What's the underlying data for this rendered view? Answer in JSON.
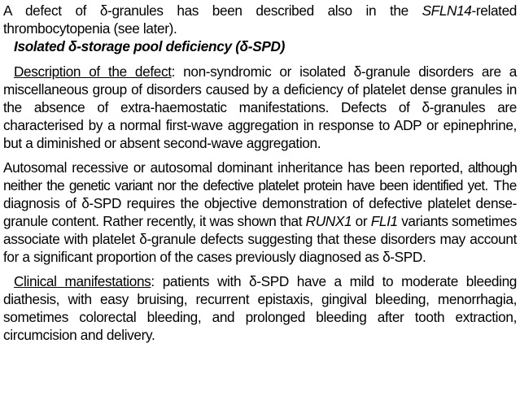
{
  "intro": {
    "t1": "A defect of δ-granules has been described also in the ",
    "gene": "SFLN14",
    "t2": "-related thrombocytopenia (see later)."
  },
  "section": {
    "heading": "Isolated δ-storage pool deficiency (δ-SPD)"
  },
  "description": {
    "label": "Description of the defect",
    "text": ": non-syndromic or isolated δ-granule disorders are a miscellaneous group of disorders caused by a deficiency of platelet dense granules in the absence of extra-haemostatic manifestations. Defects of δ-granules are characterised by a normal first-wave aggregation in response to ADP or epinephrine, but a diminished or absent second-wave aggregation."
  },
  "inheritance": {
    "t1": "Autosomal recessive or autosomal dominant inheritance has been reported, ",
    "t2": "although neither the genetic variant nor the defective platelet protein have been identified yet.",
    "t3": " The diagnosis of δ-SPD requires the objective demonstration of defective platelet dense-granule content. Rather recently, it was shown that ",
    "gene1": "RUNX1",
    "t4": " or ",
    "gene2": "FLI1",
    "t5": " variants sometimes associate with platelet δ-granule defects suggesting that these disorders may account for a significant proportion of the cases previously diagnosed as δ-SPD."
  },
  "clinical": {
    "label": "Clinical manifestations",
    "text": ": patients with δ-SPD have a mild to moderate bleeding diathesis, with easy bruising, recurrent epistaxis, gingival bleeding, menorrhagia, sometimes colorectal bleeding, and prolonged bleeding after tooth extraction, circumcision and delivery."
  }
}
